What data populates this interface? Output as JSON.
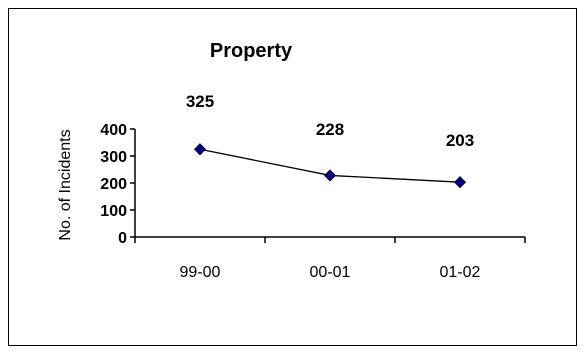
{
  "chart_data": {
    "type": "line",
    "title": "Property",
    "xlabel": "",
    "ylabel": "No. of Incidents",
    "categories": [
      "99-00",
      "00-01",
      "01-02"
    ],
    "series": [
      {
        "values": [
          325,
          228,
          203
        ],
        "color": "#000080",
        "line_color": "#000000"
      }
    ],
    "data_labels": [
      "325",
      "228",
      "203"
    ],
    "ylim": [
      0,
      400
    ],
    "yticks": [
      0,
      100,
      200,
      300,
      400
    ],
    "grid": false,
    "legend": "none",
    "marker": "diamond"
  }
}
